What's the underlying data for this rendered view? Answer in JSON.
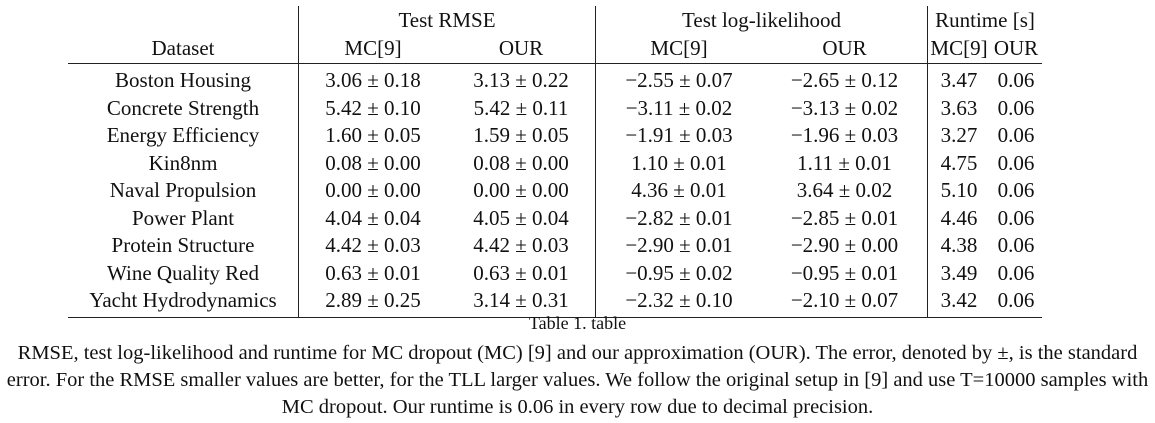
{
  "table": {
    "group_headers": {
      "rmse": "Test RMSE",
      "ll": "Test log-likelihood",
      "runtime": "Runtime [s]"
    },
    "sub_headers": {
      "dataset": "Dataset",
      "rmse_mc": "MC[9]",
      "rmse_our": "OUR",
      "ll_mc": "MC[9]",
      "ll_our": "OUR",
      "rt_mc": "MC[9]",
      "rt_our": "OUR"
    },
    "rows": [
      {
        "dataset": "Boston Housing",
        "rmse_mc": "3.06 ± 0.18",
        "rmse_our": "3.13 ± 0.22",
        "ll_mc": "−2.55 ± 0.07",
        "ll_our": "−2.65 ± 0.12",
        "rt_mc": "3.47",
        "rt_our": "0.06"
      },
      {
        "dataset": "Concrete Strength",
        "rmse_mc": "5.42 ± 0.10",
        "rmse_our": "5.42 ± 0.11",
        "ll_mc": "−3.11 ± 0.02",
        "ll_our": "−3.13 ± 0.02",
        "rt_mc": "3.63",
        "rt_our": "0.06"
      },
      {
        "dataset": "Energy Efficiency",
        "rmse_mc": "1.60 ± 0.05",
        "rmse_our": "1.59 ± 0.05",
        "ll_mc": "−1.91 ± 0.03",
        "ll_our": "−1.96 ± 0.03",
        "rt_mc": "3.27",
        "rt_our": "0.06"
      },
      {
        "dataset": "Kin8nm",
        "rmse_mc": "0.08 ± 0.00",
        "rmse_our": "0.08 ± 0.00",
        "ll_mc": "1.10 ± 0.01",
        "ll_our": "1.11 ± 0.01",
        "rt_mc": "4.75",
        "rt_our": "0.06"
      },
      {
        "dataset": "Naval Propulsion",
        "rmse_mc": "0.00 ± 0.00",
        "rmse_our": "0.00 ± 0.00",
        "ll_mc": "4.36 ± 0.01",
        "ll_our": "3.64 ± 0.02",
        "rt_mc": "5.10",
        "rt_our": "0.06"
      },
      {
        "dataset": "Power Plant",
        "rmse_mc": "4.04 ± 0.04",
        "rmse_our": "4.05 ± 0.04",
        "ll_mc": "−2.82 ± 0.01",
        "ll_our": "−2.85 ± 0.01",
        "rt_mc": "4.46",
        "rt_our": "0.06"
      },
      {
        "dataset": "Protein Structure",
        "rmse_mc": "4.42 ± 0.03",
        "rmse_our": "4.42 ± 0.03",
        "ll_mc": "−2.90 ± 0.01",
        "ll_our": "−2.90 ± 0.00",
        "rt_mc": "4.38",
        "rt_our": "0.06"
      },
      {
        "dataset": "Wine Quality Red",
        "rmse_mc": "0.63 ± 0.01",
        "rmse_our": "0.63 ± 0.01",
        "ll_mc": "−0.95 ± 0.02",
        "ll_our": "−0.95 ± 0.01",
        "rt_mc": "3.49",
        "rt_our": "0.06"
      },
      {
        "dataset": "Yacht Hydrodynamics",
        "rmse_mc": "2.89 ± 0.25",
        "rmse_our": "3.14 ± 0.31",
        "ll_mc": "−2.32 ± 0.10",
        "ll_our": "−2.10 ± 0.07",
        "rt_mc": "3.42",
        "rt_our": "0.06"
      }
    ]
  },
  "caption": {
    "label": "Table 1. table",
    "text": "RMSE, test log-likelihood and runtime for MC dropout (MC) [9] and our approximation (OUR). The error, denoted by ±, is the standard error. For the RMSE smaller values are better, for the TLL larger values. We follow the original setup in [9] and use T=10000 samples with MC dropout. Our runtime is 0.06 in every row due to decimal precision."
  }
}
